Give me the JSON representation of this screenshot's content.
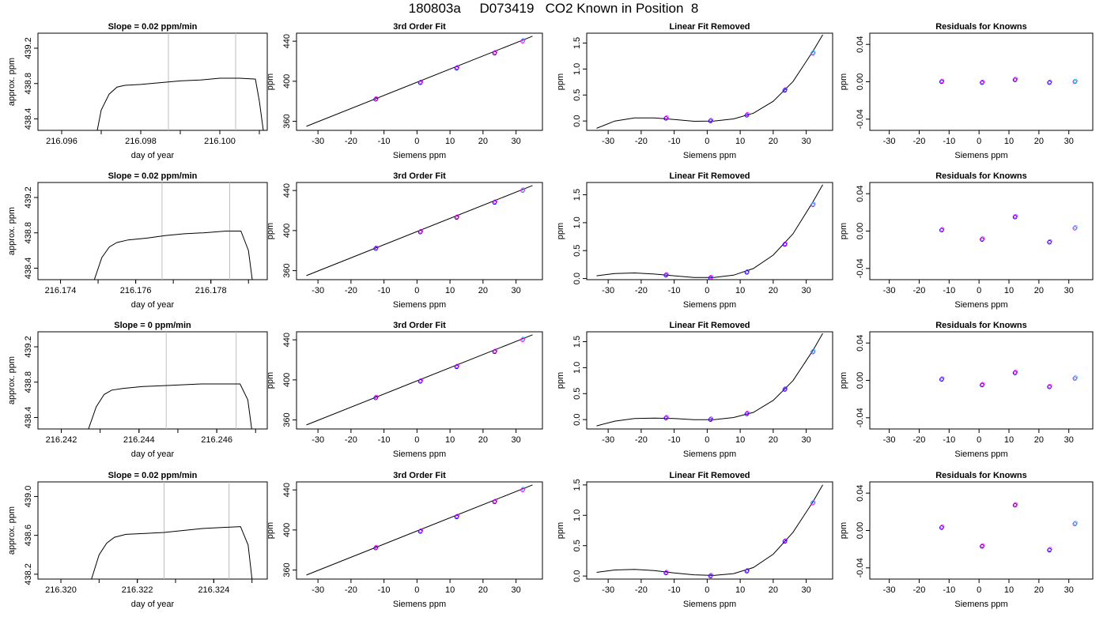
{
  "page": {
    "title": "180803a     D073419   CO2 Known in Position  8"
  },
  "colors": {
    "axis": "#000000",
    "line": "#000000",
    "marker_blue": "#0000ff",
    "marker_magenta": "#ff00ff",
    "marker_cyan": "#00bfff",
    "vline": "#bebebe"
  },
  "chart_data": [
    {
      "id": "r1-trace",
      "type": "line",
      "title": "Slope =  0.02  ppm/min",
      "xlabel": "day of year",
      "ylabel": "approx. ppm",
      "xticks": [
        "216.096",
        "216.098",
        "216.100"
      ],
      "yticks": [
        "438.4",
        "438.8",
        "439.2"
      ],
      "xlim": [
        216.0954,
        216.1012
      ],
      "ylim": [
        438.27,
        439.37
      ],
      "vlines": [
        216.0987,
        216.1004
      ],
      "x": [
        216.0969,
        216.097,
        216.0972,
        216.0974,
        216.0976,
        216.098,
        216.0985,
        216.099,
        216.0995,
        216.1,
        216.1005,
        216.1009,
        216.101,
        216.1011
      ],
      "y": [
        438.27,
        438.5,
        438.68,
        438.76,
        438.78,
        438.79,
        438.81,
        438.83,
        438.84,
        438.86,
        438.86,
        438.85,
        438.6,
        438.27
      ]
    },
    {
      "id": "r1-fit",
      "type": "scatter",
      "title": "3rd Order Fit",
      "xlabel": "Siemens ppm",
      "ylabel": "ppm",
      "xticks": [
        "-30",
        "-20",
        "-10",
        "0",
        "10",
        "20",
        "30"
      ],
      "yticks": [
        "360",
        "400",
        "440"
      ],
      "xlim": [
        -36.5,
        38
      ],
      "ylim": [
        351,
        448
      ],
      "x": [
        -12.5,
        1,
        12,
        23.5,
        32
      ],
      "y": [
        382,
        398.5,
        413,
        428,
        440
      ],
      "fit": {
        "x": [
          -33.5,
          35
        ],
        "y": [
          355,
          445
        ]
      }
    },
    {
      "id": "r1-lin",
      "type": "scatter",
      "title": "Linear Fit Removed",
      "xlabel": "Siemens ppm",
      "ylabel": "ppm",
      "xticks": [
        "-30",
        "-20",
        "-10",
        "0",
        "10",
        "20",
        "30"
      ],
      "yticks": [
        "0.0",
        "0.5",
        "1.0",
        "1.5"
      ],
      "xlim": [
        -36.5,
        38
      ],
      "ylim": [
        -0.18,
        1.69
      ],
      "x": [
        -12.5,
        1,
        12,
        23.5,
        32
      ],
      "y": [
        0.05,
        0.0,
        0.11,
        0.59,
        1.3
      ],
      "fit": {
        "x": [
          -33.5,
          -28,
          -22,
          -16,
          -10,
          -4,
          2,
          8,
          14,
          20,
          26,
          32,
          35
        ],
        "y": [
          -0.14,
          0.0,
          0.06,
          0.06,
          0.03,
          -0.005,
          0.0,
          0.04,
          0.15,
          0.38,
          0.76,
          1.34,
          1.66
        ]
      }
    },
    {
      "id": "r1-res",
      "type": "scatter",
      "title": "Residuals for Knowns",
      "xlabel": "Siemens ppm",
      "ylabel": "ppm",
      "xticks": [
        "-30",
        "-20",
        "-10",
        "0",
        "10",
        "20",
        "30"
      ],
      "yticks": [
        "-0.04",
        "0.00",
        "0.04"
      ],
      "xlim": [
        -36.5,
        38
      ],
      "ylim": [
        -0.052,
        0.052
      ],
      "x": [
        -12.5,
        1,
        12,
        23.5,
        32
      ],
      "y": [
        0.0,
        -0.001,
        0.002,
        -0.001,
        0.0
      ]
    },
    {
      "id": "r2-trace",
      "type": "line",
      "title": "Slope =  0.02  ppm/min",
      "xlabel": "day of year",
      "ylabel": "approx. ppm",
      "xticks": [
        "216.174",
        "216.176",
        "216.178"
      ],
      "yticks": [
        "438.4",
        "438.8",
        "439.2"
      ],
      "xlim": [
        216.1734,
        216.1795
      ],
      "ylim": [
        438.27,
        439.37
      ],
      "vlines": [
        216.1767,
        216.1785
      ],
      "x": [
        216.1749,
        216.1751,
        216.1753,
        216.1755,
        216.1758,
        216.1763,
        216.1768,
        216.1773,
        216.1778,
        216.1784,
        216.1788,
        216.179,
        216.1791
      ],
      "y": [
        438.27,
        438.52,
        438.64,
        438.69,
        438.72,
        438.74,
        438.77,
        438.79,
        438.8,
        438.82,
        438.82,
        438.6,
        438.27
      ]
    },
    {
      "id": "r2-fit",
      "type": "scatter",
      "title": "3rd Order Fit",
      "xlabel": "Siemens ppm",
      "ylabel": "ppm",
      "xticks": [
        "-30",
        "-20",
        "-10",
        "0",
        "10",
        "20",
        "30"
      ],
      "yticks": [
        "360",
        "400",
        "440"
      ],
      "xlim": [
        -36.5,
        38
      ],
      "ylim": [
        351,
        448
      ],
      "x": [
        -12.5,
        1,
        12,
        23.5,
        32
      ],
      "y": [
        382,
        398.5,
        413,
        428,
        440
      ],
      "fit": {
        "x": [
          -33.5,
          35
        ],
        "y": [
          355,
          445
        ]
      }
    },
    {
      "id": "r2-lin",
      "type": "scatter",
      "title": "Linear Fit Removed",
      "xlabel": "Siemens ppm",
      "ylabel": "ppm",
      "xticks": [
        "-30",
        "-20",
        "-10",
        "0",
        "10",
        "20",
        "30"
      ],
      "yticks": [
        "0.0",
        "0.5",
        "1.0",
        "1.5"
      ],
      "xlim": [
        -36.5,
        38
      ],
      "ylim": [
        -0.02,
        1.72
      ],
      "x": [
        -12.5,
        1,
        12,
        23.5,
        32
      ],
      "y": [
        0.06,
        0.01,
        0.11,
        0.61,
        1.32
      ],
      "fit": {
        "x": [
          -33.5,
          -28,
          -22,
          -16,
          -10,
          -4,
          2,
          8,
          14,
          20,
          26,
          32,
          35
        ],
        "y": [
          0.05,
          0.09,
          0.1,
          0.08,
          0.05,
          0.02,
          0.02,
          0.06,
          0.18,
          0.42,
          0.8,
          1.37,
          1.68
        ]
      }
    },
    {
      "id": "r2-res",
      "type": "scatter",
      "title": "Residuals for Knowns",
      "xlabel": "Siemens ppm",
      "ylabel": "ppm",
      "xticks": [
        "-30",
        "-20",
        "-10",
        "0",
        "10",
        "20",
        "30"
      ],
      "yticks": [
        "-0.04",
        "0.00",
        "0.04"
      ],
      "xlim": [
        -36.5,
        38
      ],
      "ylim": [
        -0.052,
        0.052
      ],
      "x": [
        -12.5,
        1,
        12,
        23.5,
        32
      ],
      "y": [
        0.001,
        -0.009,
        0.015,
        -0.012,
        0.003
      ]
    },
    {
      "id": "r3-trace",
      "type": "line",
      "title": "Slope =  0  ppm/min",
      "xlabel": "day of year",
      "ylabel": "approx. ppm",
      "xticks": [
        "216.242",
        "216.244",
        "216.246"
      ],
      "yticks": [
        "438.4",
        "438.8",
        "439.2"
      ],
      "xlim": [
        216.2414,
        216.2473
      ],
      "ylim": [
        438.27,
        439.37
      ],
      "vlines": [
        216.2447,
        216.2465
      ],
      "x": [
        216.2427,
        216.2429,
        216.2431,
        216.2433,
        216.2436,
        216.2441,
        216.2446,
        216.2451,
        216.2456,
        216.2462,
        216.2466,
        216.2468,
        216.2469
      ],
      "y": [
        438.27,
        438.52,
        438.66,
        438.71,
        438.73,
        438.75,
        438.76,
        438.77,
        438.78,
        438.78,
        438.78,
        438.6,
        438.27
      ]
    },
    {
      "id": "r3-fit",
      "type": "scatter",
      "title": "3rd Order Fit",
      "xlabel": "Siemens ppm",
      "ylabel": "ppm",
      "xticks": [
        "-30",
        "-20",
        "-10",
        "0",
        "10",
        "20",
        "30"
      ],
      "yticks": [
        "360",
        "400",
        "440"
      ],
      "xlim": [
        -36.5,
        38
      ],
      "ylim": [
        351,
        448
      ],
      "x": [
        -12.5,
        1,
        12,
        23.5,
        32
      ],
      "y": [
        382,
        398.5,
        413,
        428,
        440
      ],
      "fit": {
        "x": [
          -33.5,
          35
        ],
        "y": [
          355,
          445
        ]
      }
    },
    {
      "id": "r3-lin",
      "type": "scatter",
      "title": "Linear Fit Removed",
      "xlabel": "Siemens ppm",
      "ylabel": "ppm",
      "xticks": [
        "-30",
        "-20",
        "-10",
        "0",
        "10",
        "20",
        "30"
      ],
      "yticks": [
        "0.0",
        "0.5",
        "1.0",
        "1.5"
      ],
      "xlim": [
        -36.5,
        38
      ],
      "ylim": [
        -0.18,
        1.69
      ],
      "x": [
        -12.5,
        1,
        12,
        23.5,
        32
      ],
      "y": [
        0.03,
        0.0,
        0.11,
        0.58,
        1.3
      ],
      "fit": {
        "x": [
          -33.5,
          -28,
          -22,
          -16,
          -10,
          -4,
          2,
          8,
          14,
          20,
          26,
          32,
          35
        ],
        "y": [
          -0.12,
          -0.03,
          0.02,
          0.03,
          0.02,
          0.0,
          0.0,
          0.04,
          0.14,
          0.37,
          0.75,
          1.33,
          1.66
        ]
      }
    },
    {
      "id": "r3-res",
      "type": "scatter",
      "title": "Residuals for Knowns",
      "xlabel": "Siemens ppm",
      "ylabel": "ppm",
      "xticks": [
        "-30",
        "-20",
        "-10",
        "0",
        "10",
        "20",
        "30"
      ],
      "yticks": [
        "-0.04",
        "0.00",
        "0.04"
      ],
      "xlim": [
        -36.5,
        38
      ],
      "ylim": [
        -0.052,
        0.052
      ],
      "x": [
        -12.5,
        1,
        12,
        23.5,
        32
      ],
      "y": [
        0.001,
        -0.005,
        0.008,
        -0.007,
        0.002
      ]
    },
    {
      "id": "r4-trace",
      "type": "line",
      "title": "Slope =  0.02  ppm/min",
      "xlabel": "day of year",
      "ylabel": "approx. ppm",
      "xticks": [
        "216.320",
        "216.322",
        "216.324"
      ],
      "yticks": [
        "438.2",
        "438.6",
        "439.0"
      ],
      "xlim": [
        216.3194,
        216.3254
      ],
      "ylim": [
        438.15,
        439.15
      ],
      "vlines": [
        216.3227,
        216.3244
      ],
      "x": [
        216.3208,
        216.321,
        216.3212,
        216.3214,
        216.3217,
        216.3222,
        216.3227,
        216.3232,
        216.3237,
        216.3242,
        216.3247,
        216.3249,
        216.325
      ],
      "y": [
        438.15,
        438.4,
        438.52,
        438.58,
        438.61,
        438.62,
        438.63,
        438.65,
        438.67,
        438.68,
        438.69,
        438.5,
        438.15
      ]
    },
    {
      "id": "r4-fit",
      "type": "scatter",
      "title": "3rd Order Fit",
      "xlabel": "Siemens ppm",
      "ylabel": "ppm",
      "xticks": [
        "-30",
        "-20",
        "-10",
        "0",
        "10",
        "20",
        "30"
      ],
      "yticks": [
        "360",
        "400",
        "440"
      ],
      "xlim": [
        -36.5,
        38
      ],
      "ylim": [
        351,
        448
      ],
      "x": [
        -12.5,
        1,
        12,
        23.5,
        32
      ],
      "y": [
        382,
        398.5,
        413,
        428,
        440
      ],
      "fit": {
        "x": [
          -33.5,
          35
        ],
        "y": [
          355,
          445
        ]
      }
    },
    {
      "id": "r4-lin",
      "type": "scatter",
      "title": "Linear Fit Removed",
      "xlabel": "Siemens ppm",
      "ylabel": "ppm",
      "xticks": [
        "-30",
        "-20",
        "-10",
        "0",
        "10",
        "20",
        "30"
      ],
      "yticks": [
        "0.0",
        "0.5",
        "1.0",
        "1.5"
      ],
      "xlim": [
        -36.5,
        38
      ],
      "ylim": [
        -0.05,
        1.55
      ],
      "x": [
        -12.5,
        1,
        12,
        23.5,
        32
      ],
      "y": [
        0.05,
        0.0,
        0.08,
        0.57,
        1.2
      ],
      "fit": {
        "x": [
          -33.5,
          -28,
          -22,
          -16,
          -10,
          -4,
          2,
          8,
          14,
          20,
          26,
          32,
          35
        ],
        "y": [
          0.06,
          0.1,
          0.11,
          0.09,
          0.05,
          0.02,
          0.01,
          0.04,
          0.14,
          0.36,
          0.72,
          1.22,
          1.5
        ]
      }
    },
    {
      "id": "r4-res",
      "type": "scatter",
      "title": "Residuals for Knowns",
      "xlabel": "Siemens ppm",
      "ylabel": "ppm",
      "xticks": [
        "-30",
        "-20",
        "-10",
        "0",
        "10",
        "20",
        "30"
      ],
      "yticks": [
        "-0.04",
        "0.00",
        "0.04"
      ],
      "xlim": [
        -36.5,
        38
      ],
      "ylim": [
        -0.052,
        0.052
      ],
      "x": [
        -12.5,
        1,
        12,
        23.5,
        32
      ],
      "y": [
        0.003,
        -0.017,
        0.027,
        -0.021,
        0.007
      ]
    }
  ]
}
